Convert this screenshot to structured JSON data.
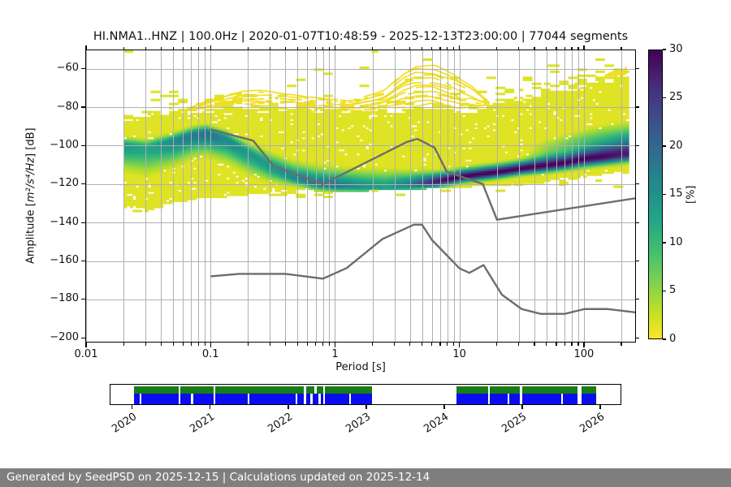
{
  "footer": {
    "text": "Generated by SeedPSD on 2025-12-15 | Calculations updated on 2025-12-14"
  },
  "chart_data": {
    "type": "heatmap",
    "title": "HI.NMA1..HNZ | 100.0Hz | 2020-01-07T10:48:59 - 2025-12-13T23:00:00 | 77044 segments",
    "xlabel": "Period [s]",
    "ylabel_parts": {
      "prefix": "Amplitude [",
      "unit": "m²/s⁴/Hz",
      "suffix": "] [dB]"
    },
    "xlim": [
      0.01,
      258
    ],
    "ylim": [
      -202,
      -50.4
    ],
    "x_scale": "log",
    "grid": true,
    "x_ticks": [
      {
        "v": 0.01,
        "label": "0.01"
      },
      {
        "v": 0.1,
        "label": "0.1"
      },
      {
        "v": 1,
        "label": "1"
      },
      {
        "v": 10,
        "label": "10"
      },
      {
        "v": 100,
        "label": "100"
      }
    ],
    "y_ticks": [
      {
        "v": -60,
        "label": "−60"
      },
      {
        "v": -80,
        "label": "−80"
      },
      {
        "v": -100,
        "label": "−100"
      },
      {
        "v": -120,
        "label": "−120"
      },
      {
        "v": -140,
        "label": "−140"
      },
      {
        "v": -160,
        "label": "−160"
      },
      {
        "v": -180,
        "label": "−180"
      },
      {
        "v": -200,
        "label": "−200"
      }
    ],
    "colorbar": {
      "label": "[%]",
      "vmin": 0,
      "vmax": 30,
      "ticks": [
        0,
        5,
        10,
        15,
        20,
        25,
        30
      ],
      "colormap": "viridis_r"
    },
    "noise_models": {
      "name": "Peterson NHNM / NLNM",
      "color": "#6d6d6d",
      "nhnm": [
        [
          0.1,
          -91.5
        ],
        [
          0.22,
          -97.4
        ],
        [
          0.32,
          -110.5
        ],
        [
          0.8,
          -120.0
        ],
        [
          3.8,
          -98.0
        ],
        [
          4.6,
          -96.5
        ],
        [
          6.3,
          -101.0
        ],
        [
          7.9,
          -113.5
        ],
        [
          15.4,
          -120.0
        ],
        [
          20.0,
          -138.5
        ],
        [
          354.8,
          -126.0
        ]
      ],
      "nlnm": [
        [
          0.1,
          -168.0
        ],
        [
          0.17,
          -166.7
        ],
        [
          0.4,
          -166.7
        ],
        [
          0.8,
          -169.2
        ],
        [
          1.24,
          -163.7
        ],
        [
          2.4,
          -148.6
        ],
        [
          4.3,
          -141.1
        ],
        [
          5.0,
          -141.1
        ],
        [
          6.0,
          -149.0
        ],
        [
          10.0,
          -163.8
        ],
        [
          12.0,
          -166.2
        ],
        [
          15.6,
          -162.1
        ],
        [
          21.9,
          -177.5
        ],
        [
          31.6,
          -185.0
        ],
        [
          45.0,
          -187.5
        ],
        [
          70.0,
          -187.5
        ],
        [
          101.0,
          -185.0
        ],
        [
          154.0,
          -185.0
        ],
        [
          328.0,
          -187.5
        ]
      ]
    },
    "ppsd": {
      "p_min": 0.02,
      "p_max": 225,
      "profile": [
        {
          "p": 0.02,
          "mode": -100.0,
          "peak": 14,
          "su": 2.5,
          "sd": 7.0,
          "top": -84.0,
          "bottom": -132.0
        },
        {
          "p": 0.03,
          "mode": -101.0,
          "peak": 12,
          "su": 2.5,
          "sd": 8.0,
          "top": -83.5,
          "bottom": -134.0
        },
        {
          "p": 0.05,
          "mode": -97.5,
          "peak": 16,
          "su": 2.5,
          "sd": 7.0,
          "top": -82.0,
          "bottom": -130.0
        },
        {
          "p": 0.07,
          "mode": -94.5,
          "peak": 18,
          "su": 2.5,
          "sd": 6.0,
          "top": -81.0,
          "bottom": -128.5
        },
        {
          "p": 0.09,
          "mode": -93.5,
          "peak": 19,
          "su": 2.5,
          "sd": 6.0,
          "top": -80.5,
          "bottom": -127.5
        },
        {
          "p": 0.13,
          "mode": -96.5,
          "peak": 16,
          "su": 2.5,
          "sd": 6.5,
          "top": -80.0,
          "bottom": -126.5
        },
        {
          "p": 0.2,
          "mode": -104.0,
          "peak": 14,
          "su": 3.0,
          "sd": 6.0,
          "top": -80.0,
          "bottom": -125.5
        },
        {
          "p": 0.3,
          "mode": -111.0,
          "peak": 14,
          "su": 4.0,
          "sd": 4.5,
          "top": -80.0,
          "bottom": -125.0
        },
        {
          "p": 0.45,
          "mode": -116.5,
          "peak": 16,
          "su": 4.5,
          "sd": 2.5,
          "top": -80.0,
          "bottom": -124.5
        },
        {
          "p": 0.7,
          "mode": -120.0,
          "peak": 18,
          "su": 5.0,
          "sd": 2.0,
          "top": -80.5,
          "bottom": -124.0
        },
        {
          "p": 1.0,
          "mode": -121.0,
          "peak": 18,
          "su": 5.0,
          "sd": 1.8,
          "top": -81.0,
          "bottom": -124.0
        },
        {
          "p": 1.6,
          "mode": -121.5,
          "peak": 15,
          "su": 5.0,
          "sd": 1.8,
          "top": -82.0,
          "bottom": -123.5
        },
        {
          "p": 2.5,
          "mode": -121.5,
          "peak": 13,
          "su": 5.0,
          "sd": 1.8,
          "top": -82.0,
          "bottom": -123.0
        },
        {
          "p": 4.0,
          "mode": -120.5,
          "peak": 18,
          "su": 4.0,
          "sd": 1.8,
          "top": -81.0,
          "bottom": -122.5
        },
        {
          "p": 5.0,
          "mode": -119.8,
          "peak": 23,
          "su": 3.5,
          "sd": 1.8,
          "top": -80.0,
          "bottom": -122.5
        },
        {
          "p": 6.0,
          "mode": -119.0,
          "peak": 27,
          "su": 3.0,
          "sd": 2.0,
          "top": -79.5,
          "bottom": -122.0
        },
        {
          "p": 8.0,
          "mode": -117.5,
          "peak": 30,
          "su": 2.5,
          "sd": 2.0,
          "top": -81.0,
          "bottom": -122.0
        },
        {
          "p": 10,
          "mode": -116.2,
          "peak": 30,
          "su": 2.5,
          "sd": 2.0,
          "top": -82.0,
          "bottom": -121.5
        },
        {
          "p": 15,
          "mode": -114.8,
          "peak": 30,
          "su": 2.5,
          "sd": 2.0,
          "top": -80.0,
          "bottom": -121.0
        },
        {
          "p": 20,
          "mode": -113.8,
          "peak": 30,
          "su": 2.5,
          "sd": 2.0,
          "top": -77.0,
          "bottom": -120.5
        },
        {
          "p": 30,
          "mode": -112.0,
          "peak": 30,
          "su": 2.5,
          "sd": 2.0,
          "top": -74.5,
          "bottom": -120.0
        },
        {
          "p": 50,
          "mode": -110.3,
          "peak": 29,
          "su": 3.0,
          "sd": 2.2,
          "top": -71.0,
          "bottom": -119.0,
          "hp": 5,
          "ho": 8.0,
          "hw": 4.0
        },
        {
          "p": 70,
          "mode": -109.0,
          "peak": 29,
          "su": 3.0,
          "sd": 2.2,
          "top": -69.0,
          "bottom": -118.0,
          "hp": 7,
          "ho": 8.5,
          "hw": 4.0
        },
        {
          "p": 100,
          "mode": -107.0,
          "peak": 29,
          "su": 3.5,
          "sd": 2.5,
          "top": -67.0,
          "bottom": -116.5,
          "hp": 8,
          "ho": 9.0,
          "hw": 4.0
        },
        {
          "p": 140,
          "mode": -106.0,
          "peak": 28,
          "su": 4.0,
          "sd": 2.5,
          "top": -64.5,
          "bottom": -115.5,
          "hp": 9,
          "ho": 9.0,
          "hw": 4.5
        },
        {
          "p": 225,
          "mode": -104.5,
          "peak": 26,
          "su": 4.5,
          "sd": 2.5,
          "top": -62.0,
          "bottom": -114.0,
          "hp": 10,
          "ho": 9.0,
          "hw": 4.5
        }
      ],
      "wisp_envelope": [
        [
          -1.15,
          -80.0
        ],
        [
          -0.95,
          -75.0
        ],
        [
          -0.75,
          -71.5
        ],
        [
          -0.55,
          -72.0
        ],
        [
          -0.35,
          -73.5
        ],
        [
          -0.1,
          -75.5
        ],
        [
          0.15,
          -76.5
        ],
        [
          0.4,
          -71.0
        ],
        [
          0.55,
          -62.0
        ],
        [
          0.65,
          -58.5
        ],
        [
          0.8,
          -58.8
        ],
        [
          0.95,
          -63.0
        ],
        [
          1.1,
          -69.0
        ],
        [
          1.28,
          -80.0
        ],
        [
          1.45,
          -78.0
        ],
        [
          1.65,
          -74.0
        ],
        [
          1.85,
          -70.5
        ],
        [
          2.05,
          -66.5
        ],
        [
          2.2,
          -63.0
        ],
        [
          2.35,
          -59.5
        ]
      ]
    },
    "timeline": {
      "frame_start": 2019.72,
      "frame_end": 2026.26,
      "years": [
        2020,
        2021,
        2022,
        2023,
        2024,
        2025,
        2026
      ],
      "green_color": "#177d17",
      "blue_color": "#0c0cf0",
      "green_segments": [
        [
          2020.02,
          2020.59
        ],
        [
          2020.615,
          2021.04
        ],
        [
          2021.065,
          2022.2
        ],
        [
          2022.225,
          2022.335
        ],
        [
          2022.36,
          2022.445
        ],
        [
          2022.47,
          2023.07
        ],
        [
          2024.16,
          2024.56
        ],
        [
          2024.585,
          2024.97
        ],
        [
          2025.0,
          2025.71
        ],
        [
          2025.765,
          2025.95
        ]
      ],
      "blue_segments": [
        [
          2020.02,
          2020.095
        ],
        [
          2020.12,
          2020.59
        ],
        [
          2020.615,
          2020.755
        ],
        [
          2020.78,
          2021.04
        ],
        [
          2021.065,
          2021.48
        ],
        [
          2021.505,
          2022.095
        ],
        [
          2022.12,
          2022.2
        ],
        [
          2022.225,
          2022.285
        ],
        [
          2022.31,
          2022.39
        ],
        [
          2022.415,
          2022.445
        ],
        [
          2022.47,
          2022.78
        ],
        [
          2022.805,
          2023.07
        ],
        [
          2024.16,
          2024.56
        ],
        [
          2024.585,
          2024.81
        ],
        [
          2024.835,
          2024.97
        ],
        [
          2025.0,
          2025.5
        ],
        [
          2025.525,
          2025.71
        ],
        [
          2025.765,
          2025.95
        ]
      ]
    }
  }
}
